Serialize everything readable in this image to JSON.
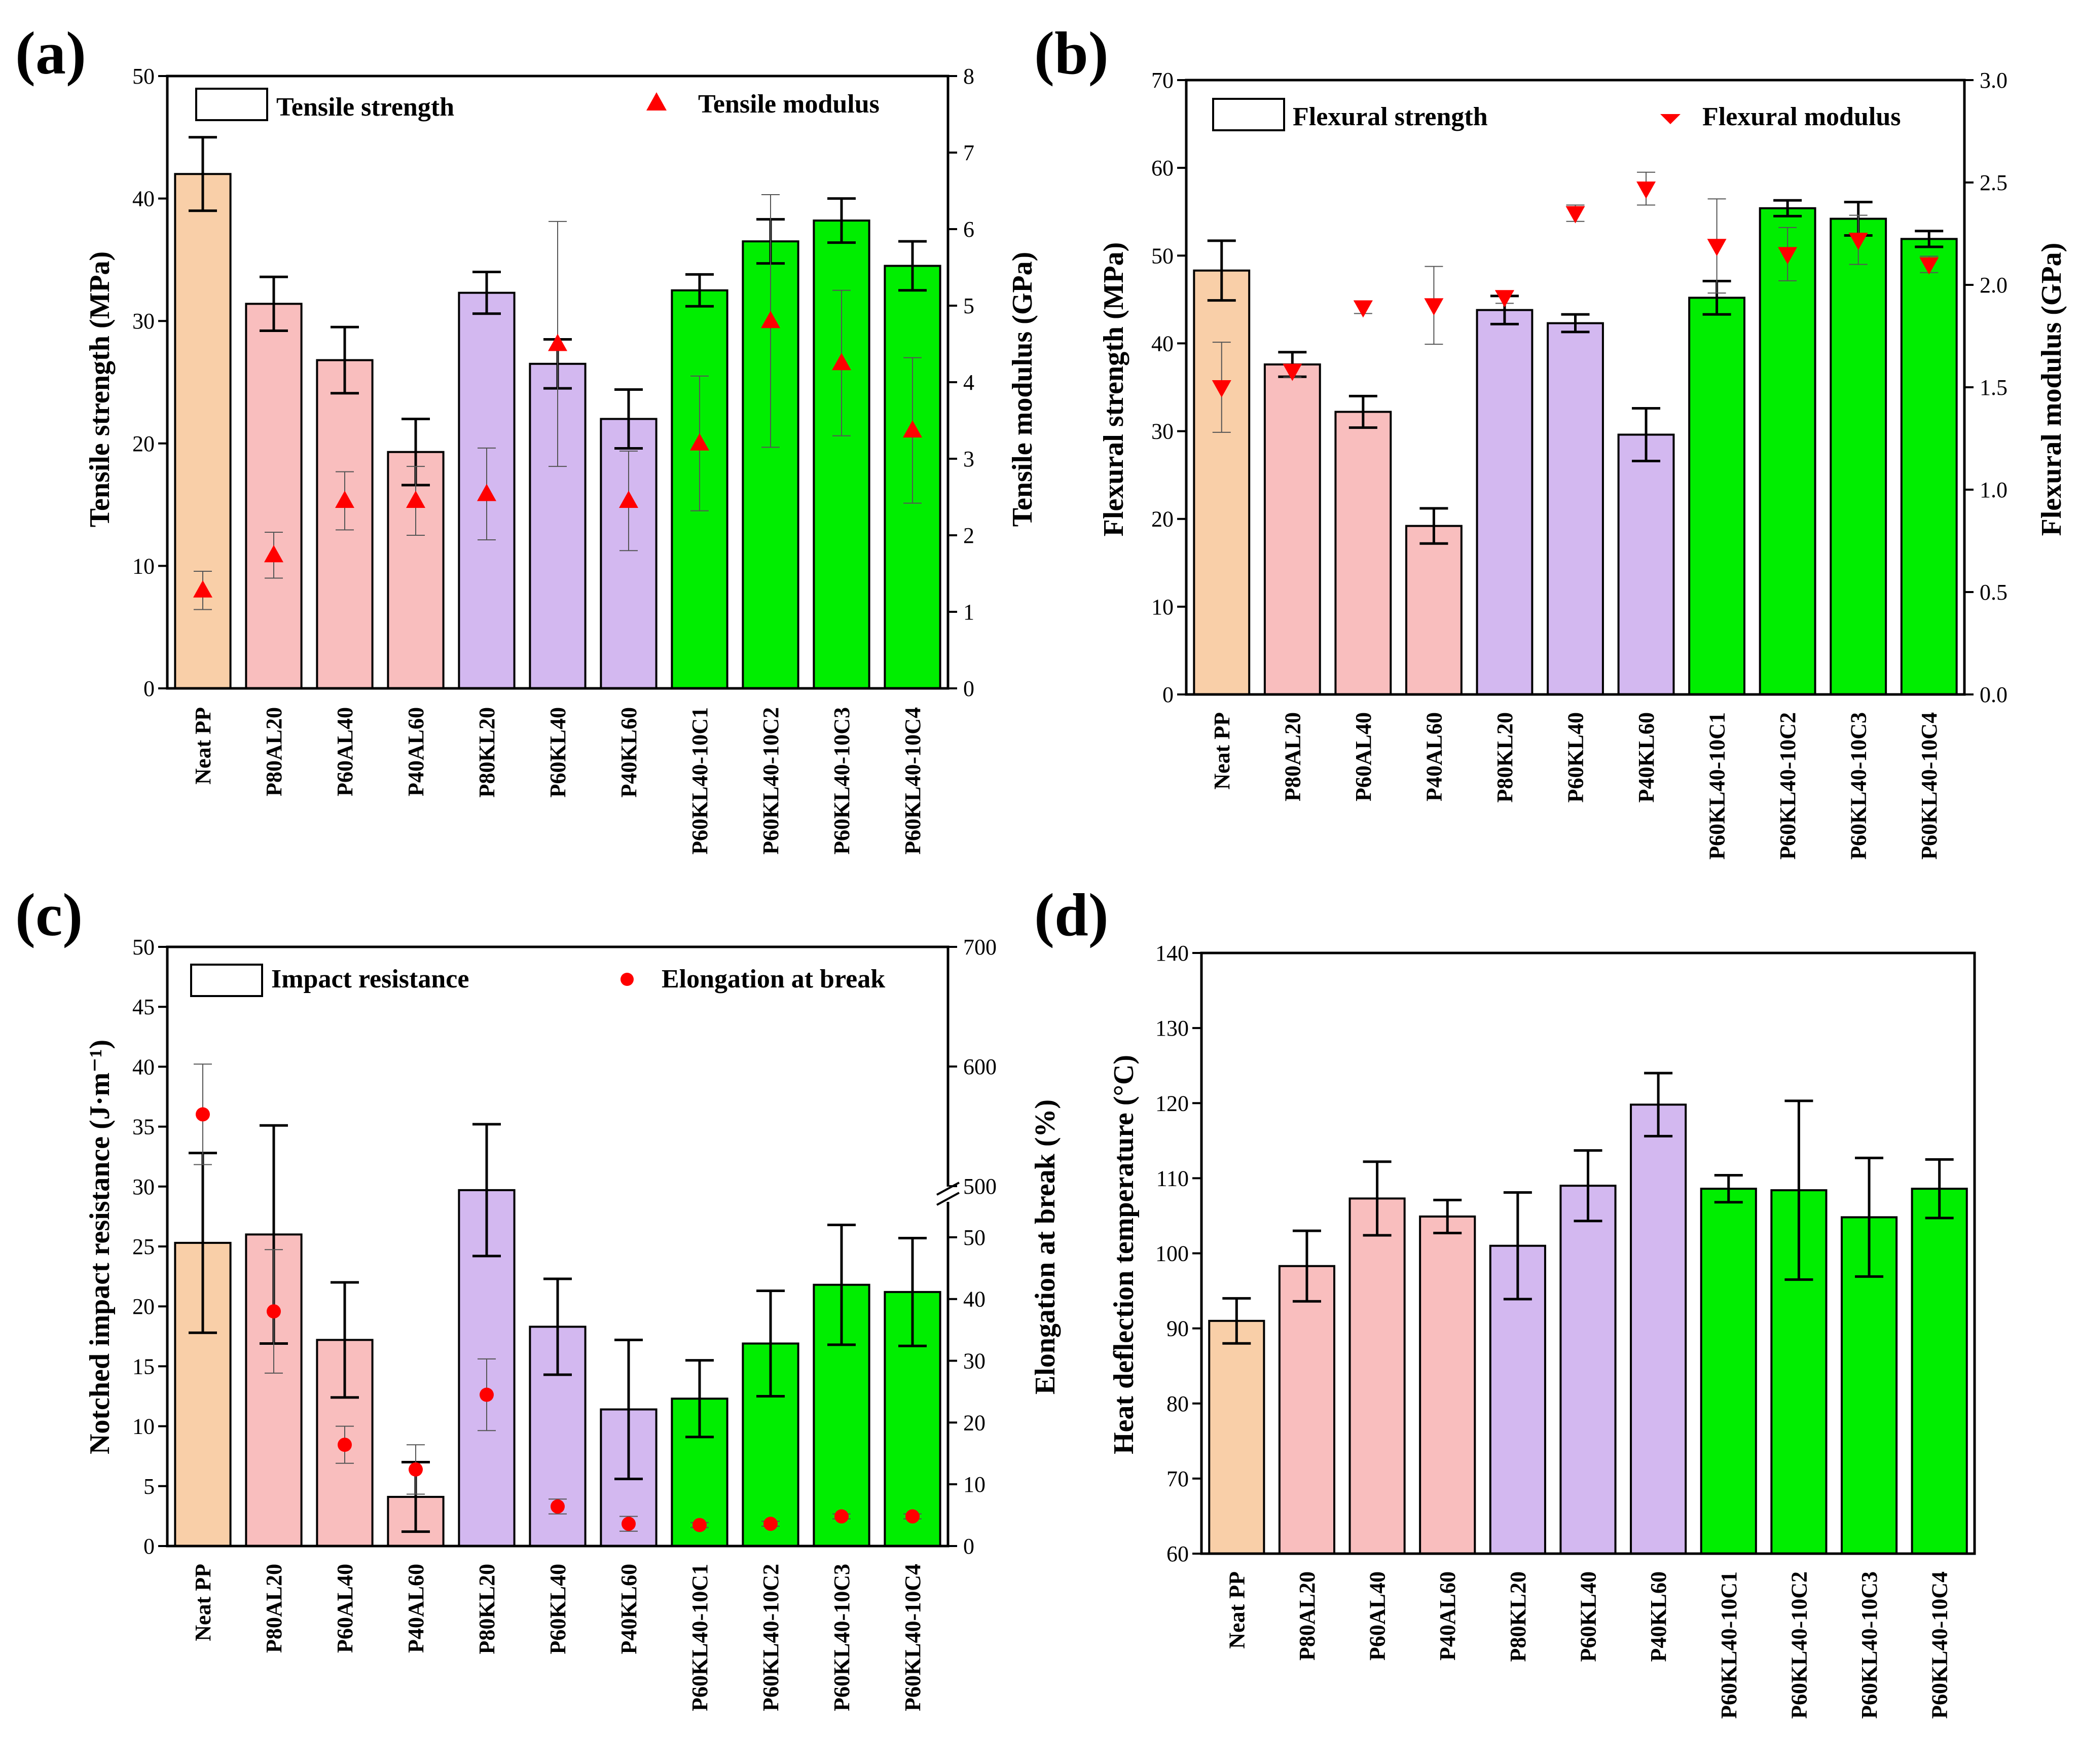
{
  "figure": {
    "colors": {
      "neat": "#F9CFA8",
      "al": "#F9BEBE",
      "kl": "#D3B8F0",
      "composite": "#00EE00",
      "marker": "#FF0000",
      "axis": "#000000"
    }
  },
  "chart_data": [
    {
      "panel": "(a)",
      "type": "bar",
      "categories": [
        "Neat PP",
        "P80AL20",
        "P60AL40",
        "P40AL60",
        "P80KL20",
        "P60KL40",
        "P40KL60",
        "P60KL40-10C1",
        "P60KL40-10C2",
        "P60KL40-10C3",
        "P60KL40-10C4"
      ],
      "groups": [
        "neat",
        "al",
        "al",
        "al",
        "kl",
        "kl",
        "kl",
        "composite",
        "composite",
        "composite",
        "composite"
      ],
      "ylabel": "Tensile strength (MPa)",
      "ylabel_right": "Tensile modulus (GPa)",
      "ylim": [
        0,
        50
      ],
      "yticks": [
        0,
        10,
        20,
        30,
        40,
        50
      ],
      "ylim_right": [
        0,
        8
      ],
      "yticks_right": [
        0,
        1,
        2,
        3,
        4,
        5,
        6,
        7,
        8
      ],
      "legend_bar": "Tensile strength",
      "legend_marker": "Tensile modulus",
      "marker_shape": "triangle-up",
      "bar_series": {
        "name": "Tensile strength",
        "values": [
          42.0,
          31.4,
          26.8,
          19.3,
          32.3,
          26.5,
          22.0,
          32.5,
          36.5,
          38.2,
          34.5
        ],
        "errors": [
          3.0,
          2.2,
          2.7,
          2.7,
          1.7,
          2.0,
          2.4,
          1.3,
          1.8,
          1.8,
          2.0
        ]
      },
      "marker_series": {
        "name": "Tensile modulus",
        "values": [
          1.28,
          1.74,
          2.45,
          2.45,
          2.54,
          4.5,
          2.45,
          3.2,
          4.8,
          4.25,
          3.37
        ],
        "errors": [
          0.25,
          0.3,
          0.38,
          0.45,
          0.6,
          1.6,
          0.65,
          0.88,
          1.65,
          0.95,
          0.95
        ]
      }
    },
    {
      "panel": "(b)",
      "type": "bar",
      "categories": [
        "Neat PP",
        "P80AL20",
        "P60AL40",
        "P40AL60",
        "P80KL20",
        "P60KL40",
        "P40KL60",
        "P60KL40-10C1",
        "P60KL40-10C2",
        "P60KL40-10C3",
        "P60KL40-10C4"
      ],
      "groups": [
        "neat",
        "al",
        "al",
        "al",
        "kl",
        "kl",
        "kl",
        "composite",
        "composite",
        "composite",
        "composite"
      ],
      "ylabel": "Flexural strength (MPa)",
      "ylabel_right": "Flexural modulus (GPa)",
      "ylim": [
        0,
        70
      ],
      "yticks": [
        0,
        10,
        20,
        30,
        40,
        50,
        60,
        70
      ],
      "ylim_right": [
        0,
        3
      ],
      "yticks_right": [
        "0.0",
        "0.5",
        "1.0",
        "1.5",
        "2.0",
        "2.5",
        "3.0"
      ],
      "legend_bar": "Flexural strength",
      "legend_marker": "Flexural modulus",
      "marker_shape": "triangle-down",
      "bar_series": {
        "name": "Flexural strength",
        "values": [
          48.3,
          37.6,
          32.2,
          19.2,
          43.8,
          42.3,
          29.6,
          45.2,
          55.4,
          54.2,
          51.9
        ],
        "errors": [
          3.4,
          1.4,
          1.8,
          2.0,
          1.6,
          1.0,
          3.0,
          1.9,
          0.9,
          1.9,
          0.9
        ]
      },
      "marker_series": {
        "name": "Flexural modulus",
        "values": [
          1.5,
          1.58,
          1.89,
          1.9,
          1.94,
          2.35,
          2.47,
          2.19,
          2.15,
          2.22,
          2.1
        ],
        "errors": [
          0.22,
          0.03,
          0.03,
          0.19,
          0.03,
          0.04,
          0.08,
          0.23,
          0.13,
          0.12,
          0.04
        ]
      }
    },
    {
      "panel": "(c)",
      "type": "bar",
      "categories": [
        "Neat PP",
        "P80AL20",
        "P60AL40",
        "P40AL60",
        "P80KL20",
        "P60KL40",
        "P40KL60",
        "P60KL40-10C1",
        "P60KL40-10C2",
        "P60KL40-10C3",
        "P60KL40-10C4"
      ],
      "groups": [
        "neat",
        "al",
        "al",
        "al",
        "kl",
        "kl",
        "kl",
        "composite",
        "composite",
        "composite",
        "composite"
      ],
      "ylabel": "Notched impact resistance (J·m⁻¹)",
      "ylabel_right": "Elongation at break (%)",
      "ylim": [
        0,
        50
      ],
      "yticks": [
        0,
        5,
        10,
        15,
        20,
        25,
        30,
        35,
        40,
        45,
        50
      ],
      "ylim_right_lower": [
        0,
        55
      ],
      "ylim_right_upper": [
        500,
        700
      ],
      "yticks_right": [
        0,
        10,
        20,
        30,
        40,
        50,
        500,
        600,
        700
      ],
      "axis_break": "between 55 and 500",
      "legend_bar": "Impact resistance",
      "legend_marker": "Elongation at break",
      "marker_shape": "circle",
      "bar_series": {
        "name": "Impact resistance",
        "values": [
          25.3,
          26.0,
          17.2,
          4.1,
          29.7,
          18.3,
          11.4,
          12.3,
          16.9,
          21.8,
          21.2
        ],
        "errors": [
          7.5,
          9.1,
          4.8,
          2.9,
          5.5,
          4.0,
          5.8,
          3.2,
          4.4,
          5.0,
          4.5
        ]
      },
      "marker_series": {
        "name": "Elongation at break",
        "values": [
          560,
          38,
          16.4,
          12.4,
          24.5,
          6.4,
          3.6,
          3.4,
          3.6,
          4.8,
          4.8
        ],
        "errors": [
          42,
          10,
          3.0,
          4.0,
          5.8,
          1.2,
          1.2,
          0.4,
          0.4,
          0.4,
          0.4
        ]
      }
    },
    {
      "panel": "(d)",
      "type": "bar",
      "categories": [
        "Neat PP",
        "P80AL20",
        "P60AL40",
        "P40AL60",
        "P80KL20",
        "P60KL40",
        "P40KL60",
        "P60KL40-10C1",
        "P60KL40-10C2",
        "P60KL40-10C3",
        "P60KL40-10C4"
      ],
      "groups": [
        "neat",
        "al",
        "al",
        "al",
        "kl",
        "kl",
        "kl",
        "composite",
        "composite",
        "composite",
        "composite"
      ],
      "ylabel": "Heat deflection temperature (°C)",
      "ylim": [
        60,
        140
      ],
      "yticks": [
        60,
        70,
        80,
        90,
        100,
        110,
        120,
        130,
        140
      ],
      "bar_series": {
        "name": "Heat deflection temperature",
        "values": [
          91.0,
          98.3,
          107.3,
          104.9,
          101.0,
          109.0,
          119.8,
          108.6,
          108.4,
          104.8,
          108.6
        ],
        "errors": [
          3.0,
          4.7,
          4.9,
          2.2,
          7.1,
          4.7,
          4.2,
          1.8,
          11.9,
          7.9,
          3.9
        ]
      }
    }
  ]
}
